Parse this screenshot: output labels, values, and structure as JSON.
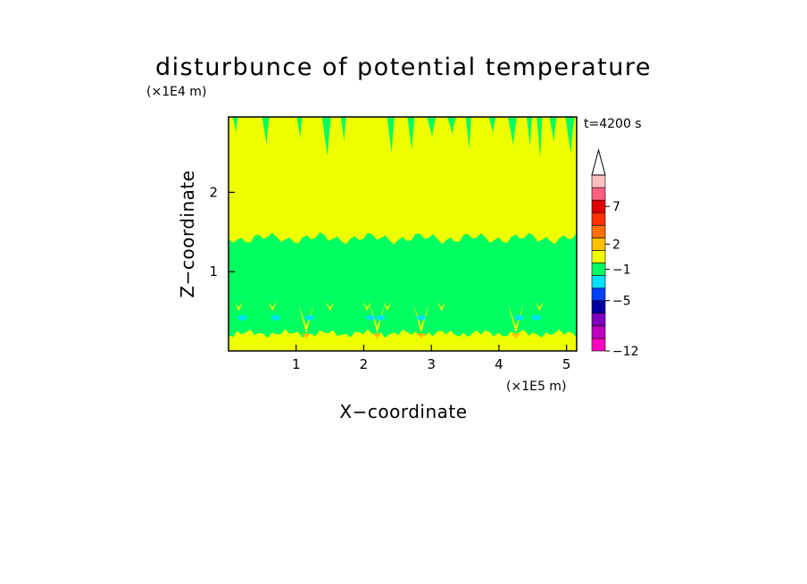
{
  "chart_data": {
    "type": "heatmap",
    "title": "disturbunce of potential temperature",
    "xlabel": "X−coordinate",
    "ylabel": "Z−coordinate",
    "x_scale_note": "(×1E5 m)",
    "y_scale_note": "(×1E4 m)",
    "time_label": "t=4200 s",
    "xlim": [
      0,
      5.15
    ],
    "ylim": [
      0,
      2.95
    ],
    "x_ticks": [
      {
        "value": 1,
        "label": "1"
      },
      {
        "value": 2,
        "label": "2"
      },
      {
        "value": 3,
        "label": "3"
      },
      {
        "value": 4,
        "label": "4"
      },
      {
        "value": 5,
        "label": "5"
      }
    ],
    "y_ticks": [
      {
        "value": 1,
        "label": "1"
      },
      {
        "value": 2,
        "label": "2"
      }
    ],
    "colorbar": {
      "levels": [
        {
          "color": "#ff00c0"
        },
        {
          "color": "#c000c0"
        },
        {
          "color": "#8000c0"
        },
        {
          "color": "#0000a0"
        },
        {
          "color": "#0040ff"
        },
        {
          "color": "#00e0ff"
        },
        {
          "color": "#00ff60"
        },
        {
          "color": "#eeff00"
        },
        {
          "color": "#ffc000"
        },
        {
          "color": "#ff7000"
        },
        {
          "color": "#ff3000"
        },
        {
          "color": "#e00000"
        },
        {
          "color": "#ff6080"
        },
        {
          "color": "#ffc0c0"
        }
      ],
      "labels": [
        {
          "text": "−12",
          "boundary": 0
        },
        {
          "text": "−5",
          "boundary": 4
        },
        {
          "text": "−1",
          "boundary": 6.5
        },
        {
          "text": "2",
          "boundary": 8.5
        },
        {
          "text": "7",
          "boundary": 11.5
        }
      ]
    },
    "fields": {
      "background_level_color": "#eeff00",
      "middle_band": {
        "color": "#00ff60",
        "z_range": [
          0.45,
          1.42
        ]
      },
      "lower_band": {
        "color": "#00ff60",
        "z_range": [
          0.22,
          0.45
        ]
      },
      "bottom_layer": {
        "color": "#eeff00",
        "z_range": [
          0,
          0.22
        ]
      },
      "cold_spots_x": [
        0.2,
        0.7,
        1.2,
        2.1,
        2.25,
        2.85,
        4.3,
        4.55
      ],
      "updraft_x": [
        1.15,
        2.2,
        2.85,
        4.25
      ]
    }
  }
}
